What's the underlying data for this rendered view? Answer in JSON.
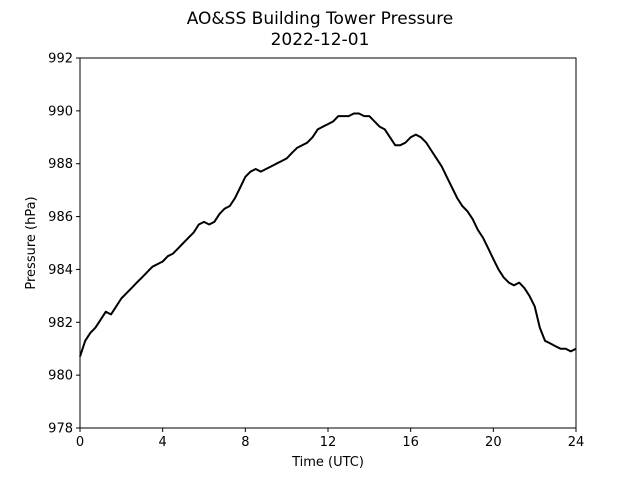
{
  "chart_data": {
    "type": "line",
    "title": "AO&SS Building Tower Pressure",
    "subtitle": "2022-12-01",
    "xlabel": "Time (UTC)",
    "ylabel": "Pressure (hPa)",
    "xlim": [
      0,
      24
    ],
    "ylim": [
      978,
      992
    ],
    "xticks": [
      0,
      4,
      8,
      12,
      16,
      20,
      24
    ],
    "yticks": [
      978,
      980,
      982,
      984,
      986,
      988,
      990,
      992
    ],
    "grid": false,
    "line_color": "#000000",
    "series": [
      {
        "x": [
          0,
          0.25,
          0.5,
          0.75,
          1.0,
          1.25,
          1.5,
          1.75,
          2.0,
          2.25,
          2.5,
          2.75,
          3.0,
          3.25,
          3.5,
          3.75,
          4.0,
          4.25,
          4.5,
          4.75,
          5.0,
          5.25,
          5.5,
          5.75,
          6.0,
          6.25,
          6.5,
          6.75,
          7.0,
          7.25,
          7.5,
          7.75,
          8.0,
          8.25,
          8.5,
          8.75,
          9.0,
          9.25,
          9.5,
          9.75,
          10.0,
          10.25,
          10.5,
          10.75,
          11.0,
          11.25,
          11.5,
          11.75,
          12.0,
          12.25,
          12.5,
          12.75,
          13.0,
          13.25,
          13.5,
          13.75,
          14.0,
          14.25,
          14.5,
          14.75,
          15.0,
          15.25,
          15.5,
          15.75,
          16.0,
          16.25,
          16.5,
          16.75,
          17.0,
          17.25,
          17.5,
          17.75,
          18.0,
          18.25,
          18.5,
          18.75,
          19.0,
          19.25,
          19.5,
          19.75,
          20.0,
          20.25,
          20.5,
          20.75,
          21.0,
          21.25,
          21.5,
          21.75,
          22.0,
          22.25,
          22.5,
          22.75,
          23.0,
          23.25,
          23.5,
          23.75,
          24.0
        ],
        "values": [
          980.7,
          981.3,
          981.6,
          981.8,
          982.1,
          982.4,
          982.3,
          982.6,
          982.9,
          983.1,
          983.3,
          983.5,
          983.7,
          983.9,
          984.1,
          984.2,
          984.3,
          984.5,
          984.6,
          984.8,
          985.0,
          985.2,
          985.4,
          985.7,
          985.8,
          985.7,
          985.8,
          986.1,
          986.3,
          986.4,
          986.7,
          987.1,
          987.5,
          987.7,
          987.8,
          987.7,
          987.8,
          987.9,
          988.0,
          988.1,
          988.2,
          988.4,
          988.6,
          988.7,
          988.8,
          989.0,
          989.3,
          989.4,
          989.5,
          989.6,
          989.8,
          989.8,
          989.8,
          989.9,
          989.9,
          989.8,
          989.8,
          989.6,
          989.4,
          989.3,
          989.0,
          988.7,
          988.7,
          988.8,
          989.0,
          989.1,
          989.0,
          988.8,
          988.5,
          988.2,
          987.9,
          987.5,
          987.1,
          986.7,
          986.4,
          986.2,
          985.9,
          985.5,
          985.2,
          984.8,
          984.4,
          984.0,
          983.7,
          983.5,
          983.4,
          983.5,
          983.3,
          983.0,
          982.6,
          981.8,
          981.3,
          981.2,
          981.1,
          981.0,
          981.0,
          980.9,
          981.0
        ]
      }
    ]
  }
}
